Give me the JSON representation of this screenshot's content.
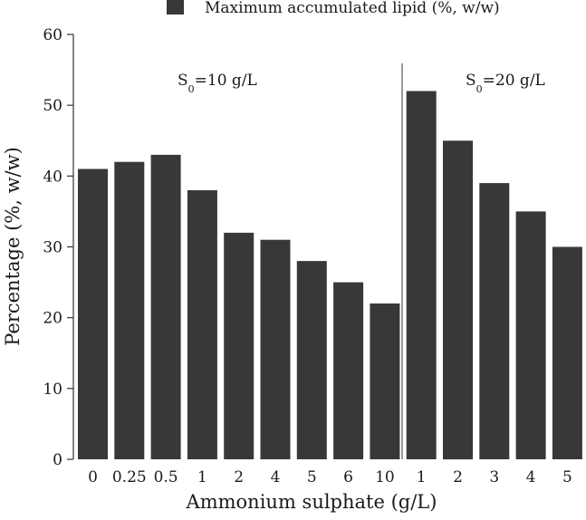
{
  "chart_data": {
    "type": "bar",
    "xlabel": "Ammonium sulphate (g/L)",
    "ylabel": "Percentage (%, w/w)",
    "ylim": [
      0,
      60
    ],
    "yticks": [
      "0",
      "10",
      "20",
      "30",
      "40",
      "50",
      "60"
    ],
    "grid": false,
    "legend_position": "top",
    "bar_color": "#383838",
    "categories": [
      "0",
      "0.25",
      "0.5",
      "1",
      "2",
      "4",
      "5",
      "6",
      "10",
      "1",
      "2",
      "3",
      "4",
      "5"
    ],
    "series": [
      {
        "name": "Maximum accumulated lipid (%, w/w)",
        "values": [
          41,
          42,
          43,
          38,
          32,
          31,
          28,
          25,
          22,
          52,
          45,
          39,
          35,
          30
        ]
      }
    ],
    "groups": [
      {
        "label_main": "S",
        "label_sub": "0",
        "label_rest": "=10 g/L",
        "count": 9
      },
      {
        "label_main": "S",
        "label_sub": "0",
        "label_rest": "=20 g/L",
        "count": 5
      }
    ]
  }
}
